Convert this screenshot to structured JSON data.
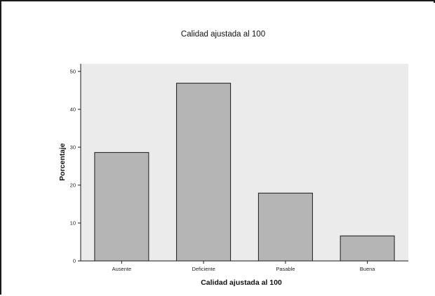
{
  "chart_data": {
    "type": "bar",
    "title": "Calidad ajustada al 100",
    "xlabel": "Calidad ajustada al 100",
    "ylabel": "Porcentaje",
    "categories": [
      "Ausente",
      "Deficiente",
      "Pasable",
      "Buena"
    ],
    "values": [
      28.6,
      46.9,
      17.9,
      6.6
    ],
    "ylim": [
      0,
      52
    ],
    "yticks": [
      0,
      10,
      20,
      30,
      40,
      50
    ],
    "grid": false,
    "legend": "none",
    "colors": {
      "plot_background": "#ebebeb",
      "bar_fill": "#b5b5b5",
      "bar_stroke": "#1a1a1a"
    }
  }
}
